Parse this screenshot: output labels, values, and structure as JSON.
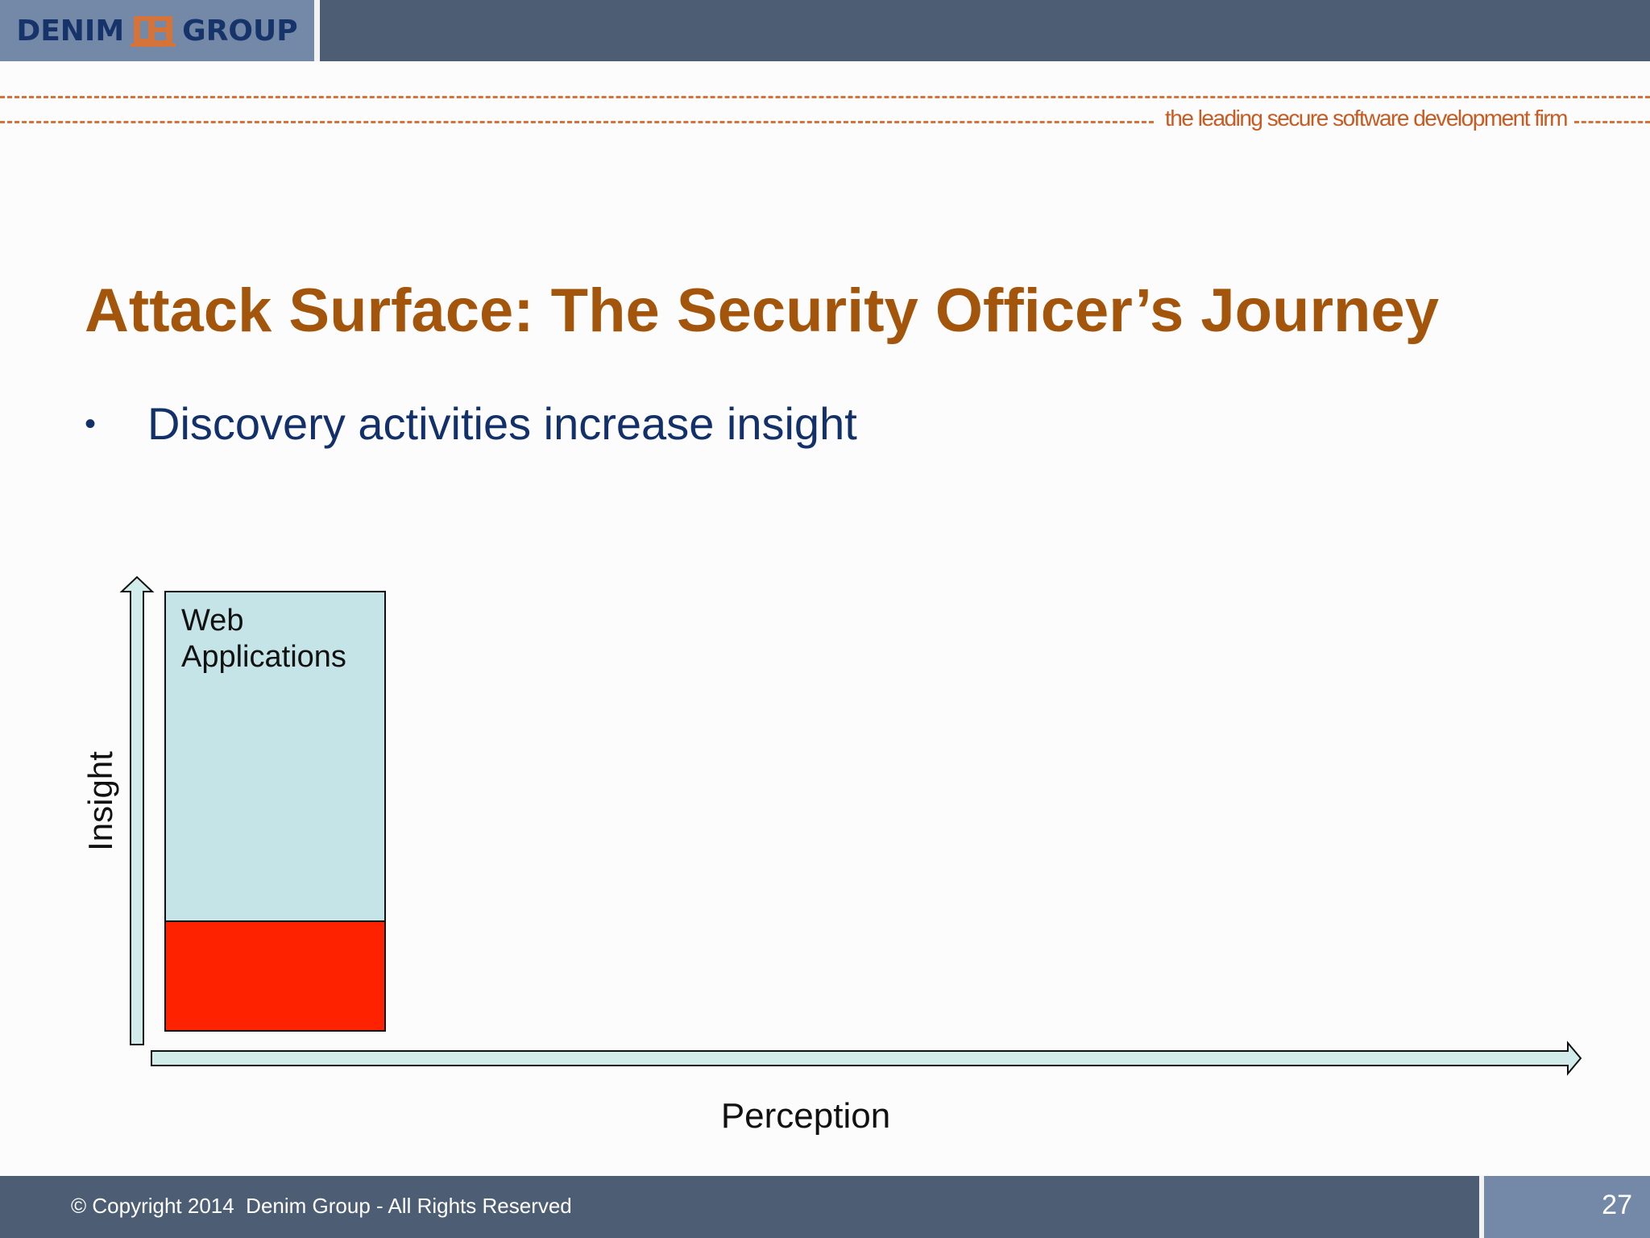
{
  "header": {
    "logo_left": "DENIM",
    "logo_right": "GROUP",
    "tagline": "the leading secure software development firm",
    "colors": {
      "bar": "#4d5e74",
      "logo_bg": "#7489a8",
      "logo_text": "#16346a",
      "accent": "#d5743a"
    }
  },
  "slide": {
    "title": "Attack Surface: The Security Officer’s Journey",
    "bullets": [
      "Discovery activities increase insight"
    ],
    "title_color": "#a3560b",
    "bullet_color": "#12306a"
  },
  "diagram": {
    "y_axis_label": "Insight",
    "x_axis_label": "Perception",
    "box_label": "Web Applications",
    "box_color": "#c5e4e8",
    "lower_block_color": "#ff2200",
    "arrow_fill": "#d2ecec"
  },
  "footer": {
    "copyright": "© Copyright 2014  Denim Group - All Rights Reserved",
    "page_number": "27"
  }
}
